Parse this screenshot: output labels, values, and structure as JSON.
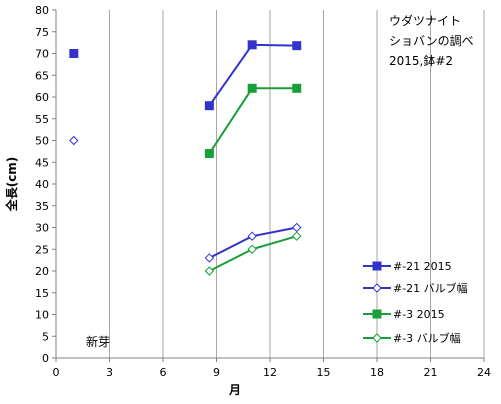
{
  "chart_data": {
    "type": "scatter",
    "title": "",
    "xlabel": "月",
    "ylabel": "全長(cm)",
    "xlim": [
      0,
      24
    ],
    "ylim": [
      0,
      80
    ],
    "x_ticks": [
      "0",
      "3",
      "6",
      "9",
      "12",
      "15",
      "18",
      "21",
      "24"
    ],
    "y_ticks": [
      "0",
      "5",
      "10",
      "15",
      "20",
      "25",
      "30",
      "35",
      "40",
      "45",
      "50",
      "55",
      "60",
      "65",
      "70",
      "75",
      "80"
    ],
    "grid": "vertical",
    "legend_position": "right",
    "annotations": [
      {
        "text": "ウダツナイト",
        "location": "top-right"
      },
      {
        "text": "ショバンの調べ",
        "location": "top-right"
      },
      {
        "text": "2015,鉢#2",
        "location": "top-right"
      },
      {
        "text": "新芽",
        "location": "bottom-left"
      }
    ],
    "series": [
      {
        "name": "#-21 2015",
        "color": "#3333cc",
        "marker": "square-filled",
        "points": [
          [
            1,
            70
          ],
          [
            8.6,
            58
          ],
          [
            11,
            72
          ],
          [
            13.5,
            71.8
          ]
        ],
        "connect_from": 1
      },
      {
        "name": "#-21 バルブ幅",
        "color": "#3333cc",
        "marker": "diamond-open",
        "points": [
          [
            1,
            50
          ],
          [
            8.6,
            23
          ],
          [
            11,
            28
          ],
          [
            13.5,
            30
          ]
        ],
        "connect_from": 1
      },
      {
        "name": "#-3 2015",
        "color": "#1a9e3a",
        "marker": "square-filled",
        "points": [
          [
            8.6,
            47
          ],
          [
            11,
            62
          ],
          [
            13.5,
            62
          ]
        ],
        "connect_from": 0
      },
      {
        "name": "#-3 バルブ幅",
        "color": "#1a9e3a",
        "marker": "diamond-open",
        "points": [
          [
            8.6,
            20
          ],
          [
            11,
            25
          ],
          [
            13.5,
            28
          ]
        ],
        "connect_from": 0
      }
    ]
  }
}
